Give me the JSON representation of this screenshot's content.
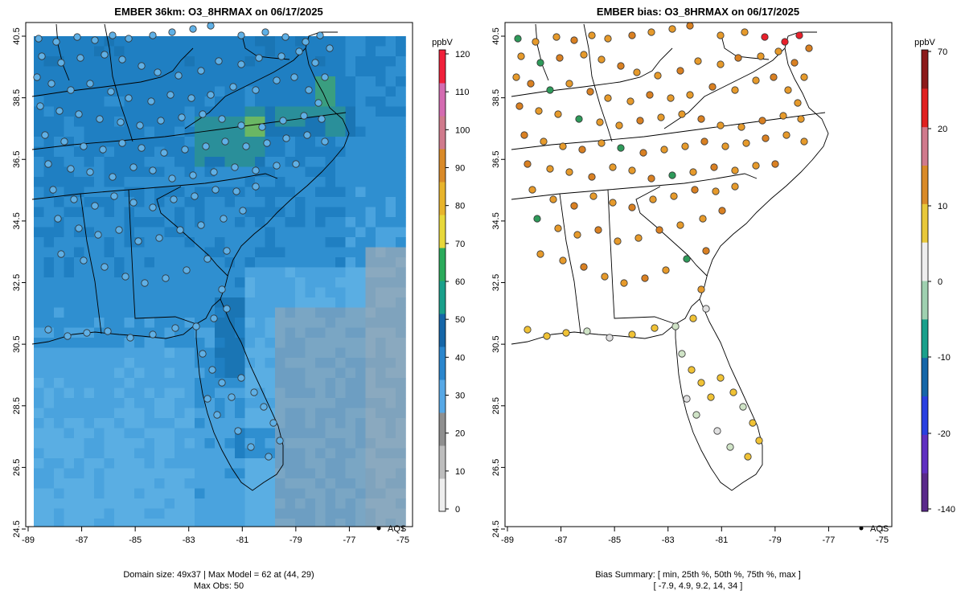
{
  "colors": {
    "frame": "#000000",
    "land_fill": "#ffffff",
    "cell_palette": [
      "#5aaee3",
      "#4aa3de",
      "#2f8fd0",
      "#1f7fc2",
      "#1a75b4",
      "#2a8f9a",
      "#3a9e80",
      "#6ab764"
    ],
    "point_left": "#5fb0e6",
    "point_bias": [
      "#e69a2b",
      "#d98022",
      "#f0c235",
      "#cfe3c6",
      "#e0e0e0",
      "#2e9a5a",
      "#e8202b"
    ]
  },
  "left_panel": {
    "title": "EMBER 36km: O3_8HRMAX on 06/17/2025",
    "legend_unit": "ppbV",
    "legend_ticks": [
      "0",
      "10",
      "20",
      "30",
      "40",
      "50",
      "60",
      "70",
      "80",
      "90",
      "100",
      "110",
      "120"
    ],
    "legend_colors": [
      "#eeeeee",
      "#bdbdbd",
      "#8f8f8f",
      "#57a8e6",
      "#2a86cd",
      "#1566a8",
      "#1aa08b",
      "#2bab5b",
      "#e8d83a",
      "#e8b42b",
      "#d98a28",
      "#d07a8c",
      "#d46bb1",
      "#f0203a"
    ],
    "footer": [
      "Domain size: 49x37 | Max Model = 62 at (44, 29)",
      "Max Obs: 50"
    ],
    "key_label": "AQS",
    "key_icon": "dot-icon"
  },
  "right_panel": {
    "title": "EMBER bias: O3_8HRMAX on 06/17/2025",
    "legend_unit": "ppbV",
    "legend_ticks": [
      "70",
      "20",
      "10",
      "0",
      "-10",
      "-20",
      "-140"
    ],
    "legend_colors": [
      "#8b1a1a",
      "#e02020",
      "#d07a8c",
      "#d98a28",
      "#e8c83a",
      "#eeeeee",
      "#9fd0b0",
      "#1aa08b",
      "#1566a8",
      "#2a40e0",
      "#6030c0",
      "#5a2a8a"
    ],
    "footer": [
      "Bias Summary: [ min, 25th %, 50th %, 75th %, max ]",
      "[ -7.9,   4.9,   9.2,   14,   34 ]"
    ],
    "key_label": "AQS",
    "key_icon": "dot-icon"
  },
  "axes": {
    "lat_labels": [
      "40.5",
      "38.5",
      "36.5",
      "34.5",
      "32.5",
      "30.5",
      "28.5",
      "26.5",
      "24.5"
    ],
    "lon_labels": [
      "-89",
      "-87",
      "-85",
      "-83",
      "-81",
      "-79",
      "-77",
      "-75"
    ]
  }
}
